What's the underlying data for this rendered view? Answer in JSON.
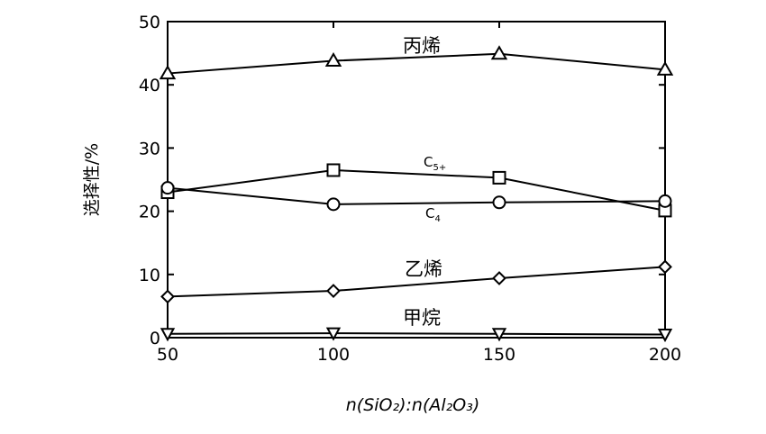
{
  "chart_data": {
    "type": "line",
    "title": "",
    "xlabel": "n(SiO₂):n(Al₂O₃)",
    "ylabel": "选择性/%",
    "x": [
      50,
      100,
      150,
      200
    ],
    "xlim": [
      50,
      200
    ],
    "ylim": [
      0,
      50
    ],
    "xticks": [
      "50",
      "100",
      "150",
      "200"
    ],
    "yticks": [
      "0",
      "10",
      "20",
      "30",
      "40",
      "50"
    ],
    "grid": false,
    "series": [
      {
        "name": "丙烯",
        "marker": "triangle-up",
        "values": [
          41.8,
          43.8,
          44.9,
          42.4
        ]
      },
      {
        "name": "C5+",
        "name_base": "C",
        "name_sub": "5+",
        "marker": "square",
        "values": [
          23.0,
          26.5,
          25.3,
          20.1
        ]
      },
      {
        "name": "C4",
        "name_base": "C",
        "name_sub": "4",
        "marker": "circle",
        "values": [
          23.7,
          21.1,
          21.4,
          21.6
        ]
      },
      {
        "name": "乙烯",
        "marker": "diamond",
        "values": [
          6.5,
          7.4,
          9.4,
          11.2
        ]
      },
      {
        "name": "甲烷",
        "marker": "triangle-down",
        "values": [
          0.6,
          0.7,
          0.6,
          0.5
        ]
      }
    ]
  }
}
